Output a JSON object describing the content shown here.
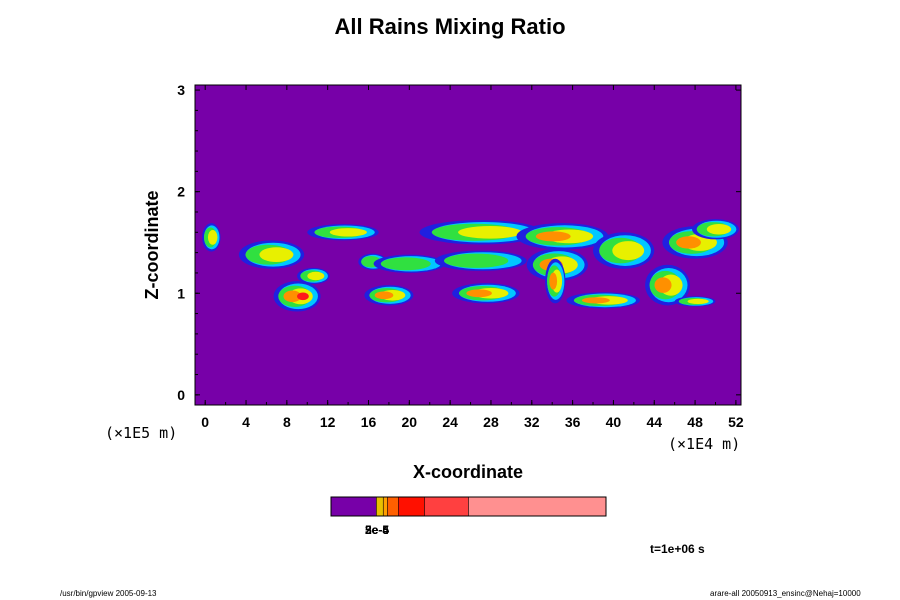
{
  "chart_data": {
    "type": "heatmap",
    "title": "All Rains Mixing Ratio",
    "xlabel": "X-coordinate",
    "ylabel": "Z-coordinate",
    "x_unit": "(×1E4 m)",
    "y_unit": "(×1E5 m)",
    "xlim": [
      -1,
      52.5
    ],
    "ylim": [
      -0.1,
      3.05
    ],
    "xticks": [
      "0",
      "4",
      "8",
      "12",
      "16",
      "20",
      "24",
      "28",
      "32",
      "36",
      "40",
      "44",
      "48",
      "52"
    ],
    "yticks": [
      "0",
      "1",
      "2",
      "3"
    ],
    "background_color": "#7700a8",
    "blobs": [
      {
        "x": 6.5,
        "z": 1.38,
        "rx": 3.2,
        "rz": 0.14,
        "level": 2
      },
      {
        "x": 0.6,
        "z": 1.55,
        "rx": 0.9,
        "rz": 0.14,
        "level": 2
      },
      {
        "x": 9.0,
        "z": 0.97,
        "rx": 2.3,
        "rz": 0.15,
        "level": 4
      },
      {
        "x": 10.6,
        "z": 1.17,
        "rx": 1.6,
        "rz": 0.08,
        "level": 2
      },
      {
        "x": 13.5,
        "z": 1.6,
        "rx": 3.5,
        "rz": 0.08,
        "level": 2
      },
      {
        "x": 16.4,
        "z": 1.31,
        "rx": 1.4,
        "rz": 0.08,
        "level": 1
      },
      {
        "x": 18.0,
        "z": 0.98,
        "rx": 2.4,
        "rz": 0.1,
        "level": 3
      },
      {
        "x": 20.0,
        "z": 1.29,
        "rx": 3.5,
        "rz": 0.09,
        "level": 1
      },
      {
        "x": 27.5,
        "z": 1.0,
        "rx": 3.3,
        "rz": 0.1,
        "level": 3
      },
      {
        "x": 27.0,
        "z": 1.32,
        "rx": 4.5,
        "rz": 0.1,
        "level": 1
      },
      {
        "x": 27.0,
        "z": 1.6,
        "rx": 6.0,
        "rz": 0.12,
        "level": 2
      },
      {
        "x": 35.0,
        "z": 1.56,
        "rx": 4.5,
        "rz": 0.13,
        "level": 3
      },
      {
        "x": 34.5,
        "z": 1.28,
        "rx": 3.0,
        "rz": 0.16,
        "level": 3
      },
      {
        "x": 34.3,
        "z": 1.12,
        "rx": 1.0,
        "rz": 0.22,
        "level": 3
      },
      {
        "x": 39.0,
        "z": 0.93,
        "rx": 3.6,
        "rz": 0.08,
        "level": 3
      },
      {
        "x": 41.0,
        "z": 1.42,
        "rx": 3.0,
        "rz": 0.18,
        "level": 2
      },
      {
        "x": 45.3,
        "z": 1.08,
        "rx": 2.2,
        "rz": 0.2,
        "level": 3
      },
      {
        "x": 48.0,
        "z": 1.5,
        "rx": 3.2,
        "rz": 0.16,
        "level": 3
      },
      {
        "x": 48.0,
        "z": 0.92,
        "rx": 2.0,
        "rz": 0.05,
        "level": 2
      },
      {
        "x": 50.0,
        "z": 1.63,
        "rx": 2.3,
        "rz": 0.1,
        "level": 2
      }
    ],
    "colorbar": {
      "colors": [
        "#7700a8",
        "#e8c000",
        "#ffa000",
        "#ff6000",
        "#ff1000",
        "#ff4040",
        "#ff9090"
      ],
      "stops": [
        0,
        0.165,
        0.19,
        0.205,
        0.245,
        0.34,
        0.5,
        1
      ],
      "labels": [
        "2e-5",
        "3e-5",
        "5e-4"
      ]
    }
  },
  "annotations": {
    "time_label": "t=1e+06 s",
    "footer_left": "/usr/bin/gpview 2005-09-13",
    "footer_right": "arare-all 20050913_ensinc@Nehaj=10000"
  }
}
